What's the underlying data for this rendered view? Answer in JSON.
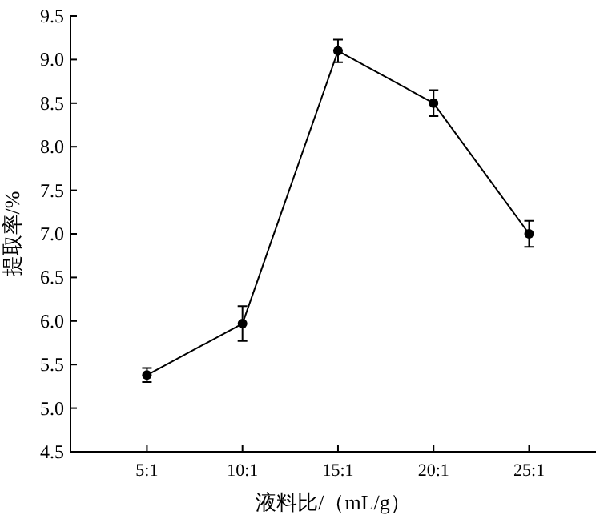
{
  "chart_data": {
    "type": "line",
    "xlabel": "液料比/（mL/g）",
    "ylabel": "提取率/%",
    "categories": [
      "5:1",
      "10:1",
      "15:1",
      "20:1",
      "25:1"
    ],
    "series": [
      {
        "color": "#000000",
        "values": [
          5.38,
          5.97,
          9.1,
          8.5,
          7.0
        ],
        "errors": [
          0.08,
          0.2,
          0.13,
          0.15,
          0.15
        ]
      }
    ],
    "ylim": [
      4.5,
      9.5
    ],
    "yticks": [
      {
        "value": 4.5,
        "label": "4.5"
      },
      {
        "value": 5.0,
        "label": "5.0"
      },
      {
        "value": 5.5,
        "label": "5.5"
      },
      {
        "value": 6.0,
        "label": "6.0"
      },
      {
        "value": 6.5,
        "label": "6.5"
      },
      {
        "value": 7.0,
        "label": "7.0"
      },
      {
        "value": 7.5,
        "label": "7.5"
      },
      {
        "value": 8.0,
        "label": "8.0"
      },
      {
        "value": 8.5,
        "label": "8.5"
      },
      {
        "value": 9.0,
        "label": "9.0"
      },
      {
        "value": 9.5,
        "label": "9.5"
      }
    ],
    "marker": "circle",
    "line_style": "solid"
  }
}
